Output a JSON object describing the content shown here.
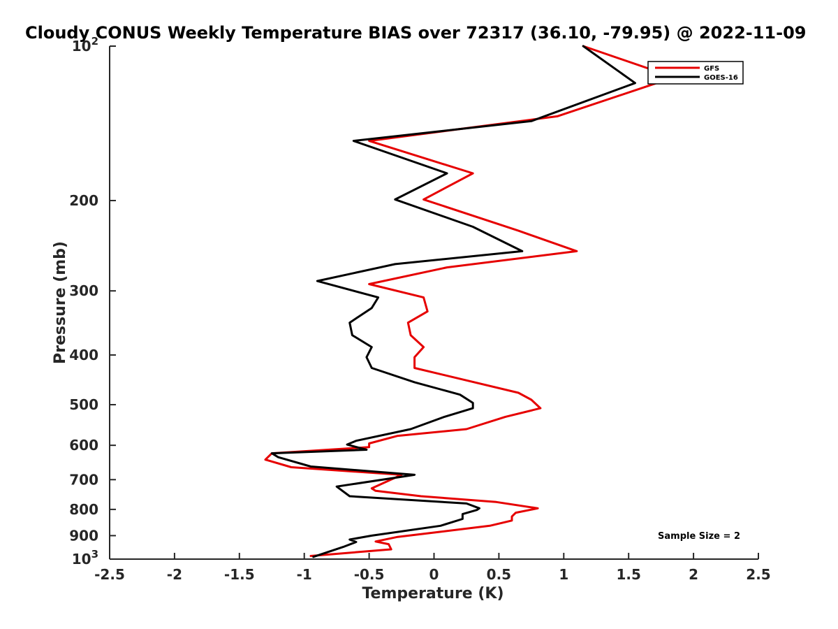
{
  "chart_data": {
    "type": "line",
    "title": "Cloudy CONUS Weekly Temperature BIAS over 72317 (36.10, -79.95) @ 2022-11-09",
    "xlabel": "Temperature (K)",
    "ylabel": "Pressure (mb)",
    "xlim": [
      -2.5,
      2.5
    ],
    "ylim": [
      1000,
      100
    ],
    "y_scale": "log",
    "y_reversed": true,
    "x_ticks": [
      "-2.5",
      "-2",
      "-1.5",
      "-1",
      "-0.5",
      "0",
      "0.5",
      "1",
      "1.5",
      "2",
      "2.5"
    ],
    "x_tick_values": [
      -2.5,
      -2,
      -1.5,
      -1,
      -0.5,
      0,
      0.5,
      1,
      1.5,
      2,
      2.5
    ],
    "y_ticks": [
      {
        "value": 100,
        "label": "10",
        "exp": "2"
      },
      {
        "value": 200,
        "label": "200"
      },
      {
        "value": 300,
        "label": "300"
      },
      {
        "value": 400,
        "label": "400"
      },
      {
        "value": 500,
        "label": "500"
      },
      {
        "value": 600,
        "label": "600"
      },
      {
        "value": 700,
        "label": "700"
      },
      {
        "value": 800,
        "label": "800"
      },
      {
        "value": 900,
        "label": "900"
      },
      {
        "value": 1000,
        "label": "10",
        "exp": "3"
      }
    ],
    "grid": false,
    "legend_position": "top-right",
    "annotation": "Sample Size = 2",
    "series": [
      {
        "name": "GFS",
        "color": "#e60000",
        "points": [
          [
            1.15,
            100
          ],
          [
            1.85,
            115
          ],
          [
            0.95,
            137
          ],
          [
            -0.5,
            153
          ],
          [
            0.3,
            177
          ],
          [
            -0.08,
            199
          ],
          [
            0.65,
            229
          ],
          [
            1.1,
            251
          ],
          [
            0.1,
            270
          ],
          [
            -0.5,
            291
          ],
          [
            -0.08,
            309
          ],
          [
            -0.05,
            329
          ],
          [
            -0.2,
            346
          ],
          [
            -0.18,
            366
          ],
          [
            -0.08,
            386
          ],
          [
            -0.15,
            404
          ],
          [
            -0.15,
            424
          ],
          [
            0.65,
            474
          ],
          [
            0.75,
            489
          ],
          [
            0.82,
            508
          ],
          [
            0.55,
            528
          ],
          [
            0.25,
            558
          ],
          [
            -0.28,
            575
          ],
          [
            -0.5,
            595
          ],
          [
            -0.5,
            605
          ],
          [
            -1.25,
            622
          ],
          [
            -1.3,
            640
          ],
          [
            -1.1,
            662
          ],
          [
            -0.25,
            685
          ],
          [
            -0.48,
            728
          ],
          [
            -0.45,
            736
          ],
          [
            -0.1,
            754
          ],
          [
            0.48,
            774
          ],
          [
            0.8,
            796
          ],
          [
            0.63,
            812
          ],
          [
            0.6,
            826
          ],
          [
            0.6,
            841
          ],
          [
            0.43,
            861
          ],
          [
            -0.1,
            894
          ],
          [
            -0.28,
            905
          ],
          [
            -0.45,
            924
          ],
          [
            -0.35,
            935
          ],
          [
            -0.33,
            957
          ],
          [
            -0.95,
            986
          ]
        ]
      },
      {
        "name": "GOES-16",
        "color": "#000000",
        "points": [
          [
            1.15,
            100
          ],
          [
            1.55,
            118
          ],
          [
            0.75,
            140
          ],
          [
            -0.62,
            153
          ],
          [
            0.1,
            177
          ],
          [
            -0.3,
            199
          ],
          [
            0.3,
            225
          ],
          [
            0.68,
            251
          ],
          [
            -0.3,
            266
          ],
          [
            -0.9,
            287
          ],
          [
            -0.43,
            309
          ],
          [
            -0.48,
            324
          ],
          [
            -0.65,
            346
          ],
          [
            -0.63,
            366
          ],
          [
            -0.48,
            386
          ],
          [
            -0.52,
            404
          ],
          [
            -0.48,
            424
          ],
          [
            -0.15,
            452
          ],
          [
            0.2,
            478
          ],
          [
            0.3,
            496
          ],
          [
            0.3,
            508
          ],
          [
            0.08,
            528
          ],
          [
            -0.18,
            558
          ],
          [
            -0.6,
            588
          ],
          [
            -0.67,
            598
          ],
          [
            -0.52,
            612
          ],
          [
            -1.25,
            622
          ],
          [
            -1.2,
            633
          ],
          [
            -0.95,
            660
          ],
          [
            -0.15,
            685
          ],
          [
            -0.75,
            722
          ],
          [
            -0.65,
            754
          ],
          [
            0.25,
            779
          ],
          [
            0.35,
            796
          ],
          [
            0.33,
            802
          ],
          [
            0.22,
            817
          ],
          [
            0.22,
            835
          ],
          [
            0.05,
            861
          ],
          [
            -0.48,
            900
          ],
          [
            -0.65,
            916
          ],
          [
            -0.6,
            926
          ],
          [
            -0.7,
            947
          ],
          [
            -0.93,
            990
          ]
        ]
      }
    ]
  }
}
